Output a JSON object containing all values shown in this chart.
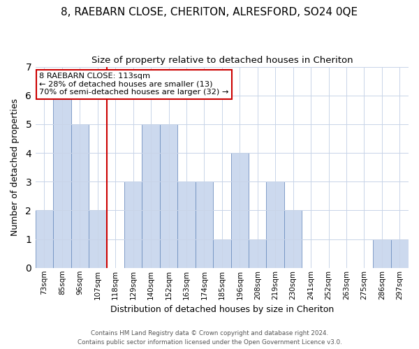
{
  "title": "8, RAEBARN CLOSE, CHERITON, ALRESFORD, SO24 0QE",
  "subtitle": "Size of property relative to detached houses in Cheriton",
  "xlabel": "Distribution of detached houses by size in Cheriton",
  "ylabel": "Number of detached properties",
  "bar_color": "#ccd9ee",
  "bar_edge_color": "#7090c0",
  "bins": [
    "73sqm",
    "85sqm",
    "96sqm",
    "107sqm",
    "118sqm",
    "129sqm",
    "140sqm",
    "152sqm",
    "163sqm",
    "174sqm",
    "185sqm",
    "196sqm",
    "208sqm",
    "219sqm",
    "230sqm",
    "241sqm",
    "252sqm",
    "263sqm",
    "275sqm",
    "286sqm",
    "297sqm"
  ],
  "values": [
    2,
    6,
    5,
    2,
    0,
    3,
    5,
    5,
    3,
    3,
    1,
    4,
    1,
    3,
    2,
    0,
    0,
    0,
    0,
    1,
    1
  ],
  "ylim": [
    0,
    7
  ],
  "yticks": [
    0,
    1,
    2,
    3,
    4,
    5,
    6,
    7
  ],
  "vline_x_idx": 3,
  "vline_color": "#cc0000",
  "annotation_text": "8 RAEBARN CLOSE: 113sqm\n← 28% of detached houses are smaller (13)\n70% of semi-detached houses are larger (32) →",
  "annotation_box_color": "#ffffff",
  "annotation_box_edge": "#cc0000",
  "footer_line1": "Contains HM Land Registry data © Crown copyright and database right 2024.",
  "footer_line2": "Contains public sector information licensed under the Open Government Licence v3.0.",
  "background_color": "#ffffff",
  "grid_color": "#c8d4e8",
  "title_fontsize": 11,
  "subtitle_fontsize": 9.5
}
